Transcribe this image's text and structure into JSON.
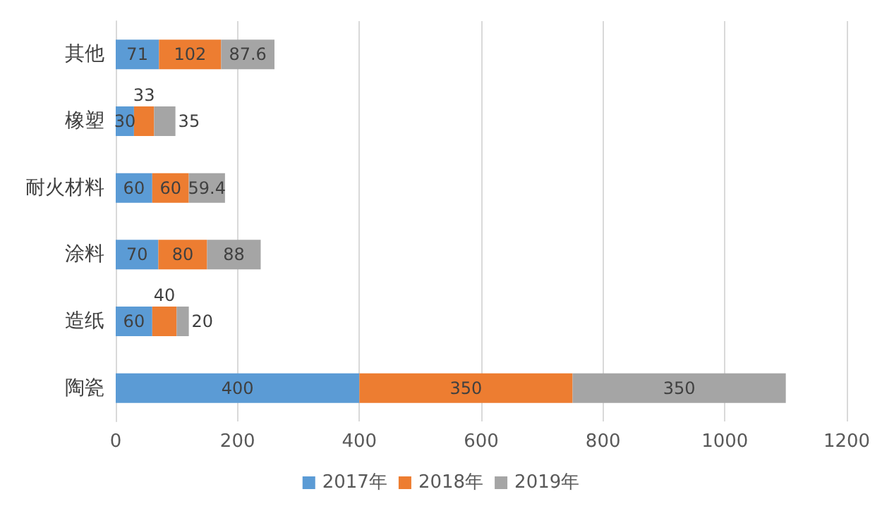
{
  "chart_data": {
    "type": "bar",
    "orientation": "horizontal",
    "stacked": true,
    "categories": [
      "其他",
      "橡塑",
      "耐火材料",
      "涂料",
      "造纸",
      "陶瓷"
    ],
    "series": [
      {
        "name": "2017年",
        "color": "#5b9bd5",
        "values": [
          71,
          30,
          60,
          70,
          60,
          400
        ]
      },
      {
        "name": "2018年",
        "color": "#ed7d31",
        "values": [
          102,
          33,
          60,
          80,
          40,
          350
        ]
      },
      {
        "name": "2019年",
        "color": "#a5a5a5",
        "values": [
          87.6,
          35,
          59.4,
          88,
          20,
          350
        ]
      }
    ],
    "xlim": [
      0,
      1200
    ],
    "xticks": [
      0,
      200,
      400,
      600,
      800,
      1000,
      1200
    ],
    "grid": "x",
    "legend": "bottom",
    "data_labels": true
  }
}
